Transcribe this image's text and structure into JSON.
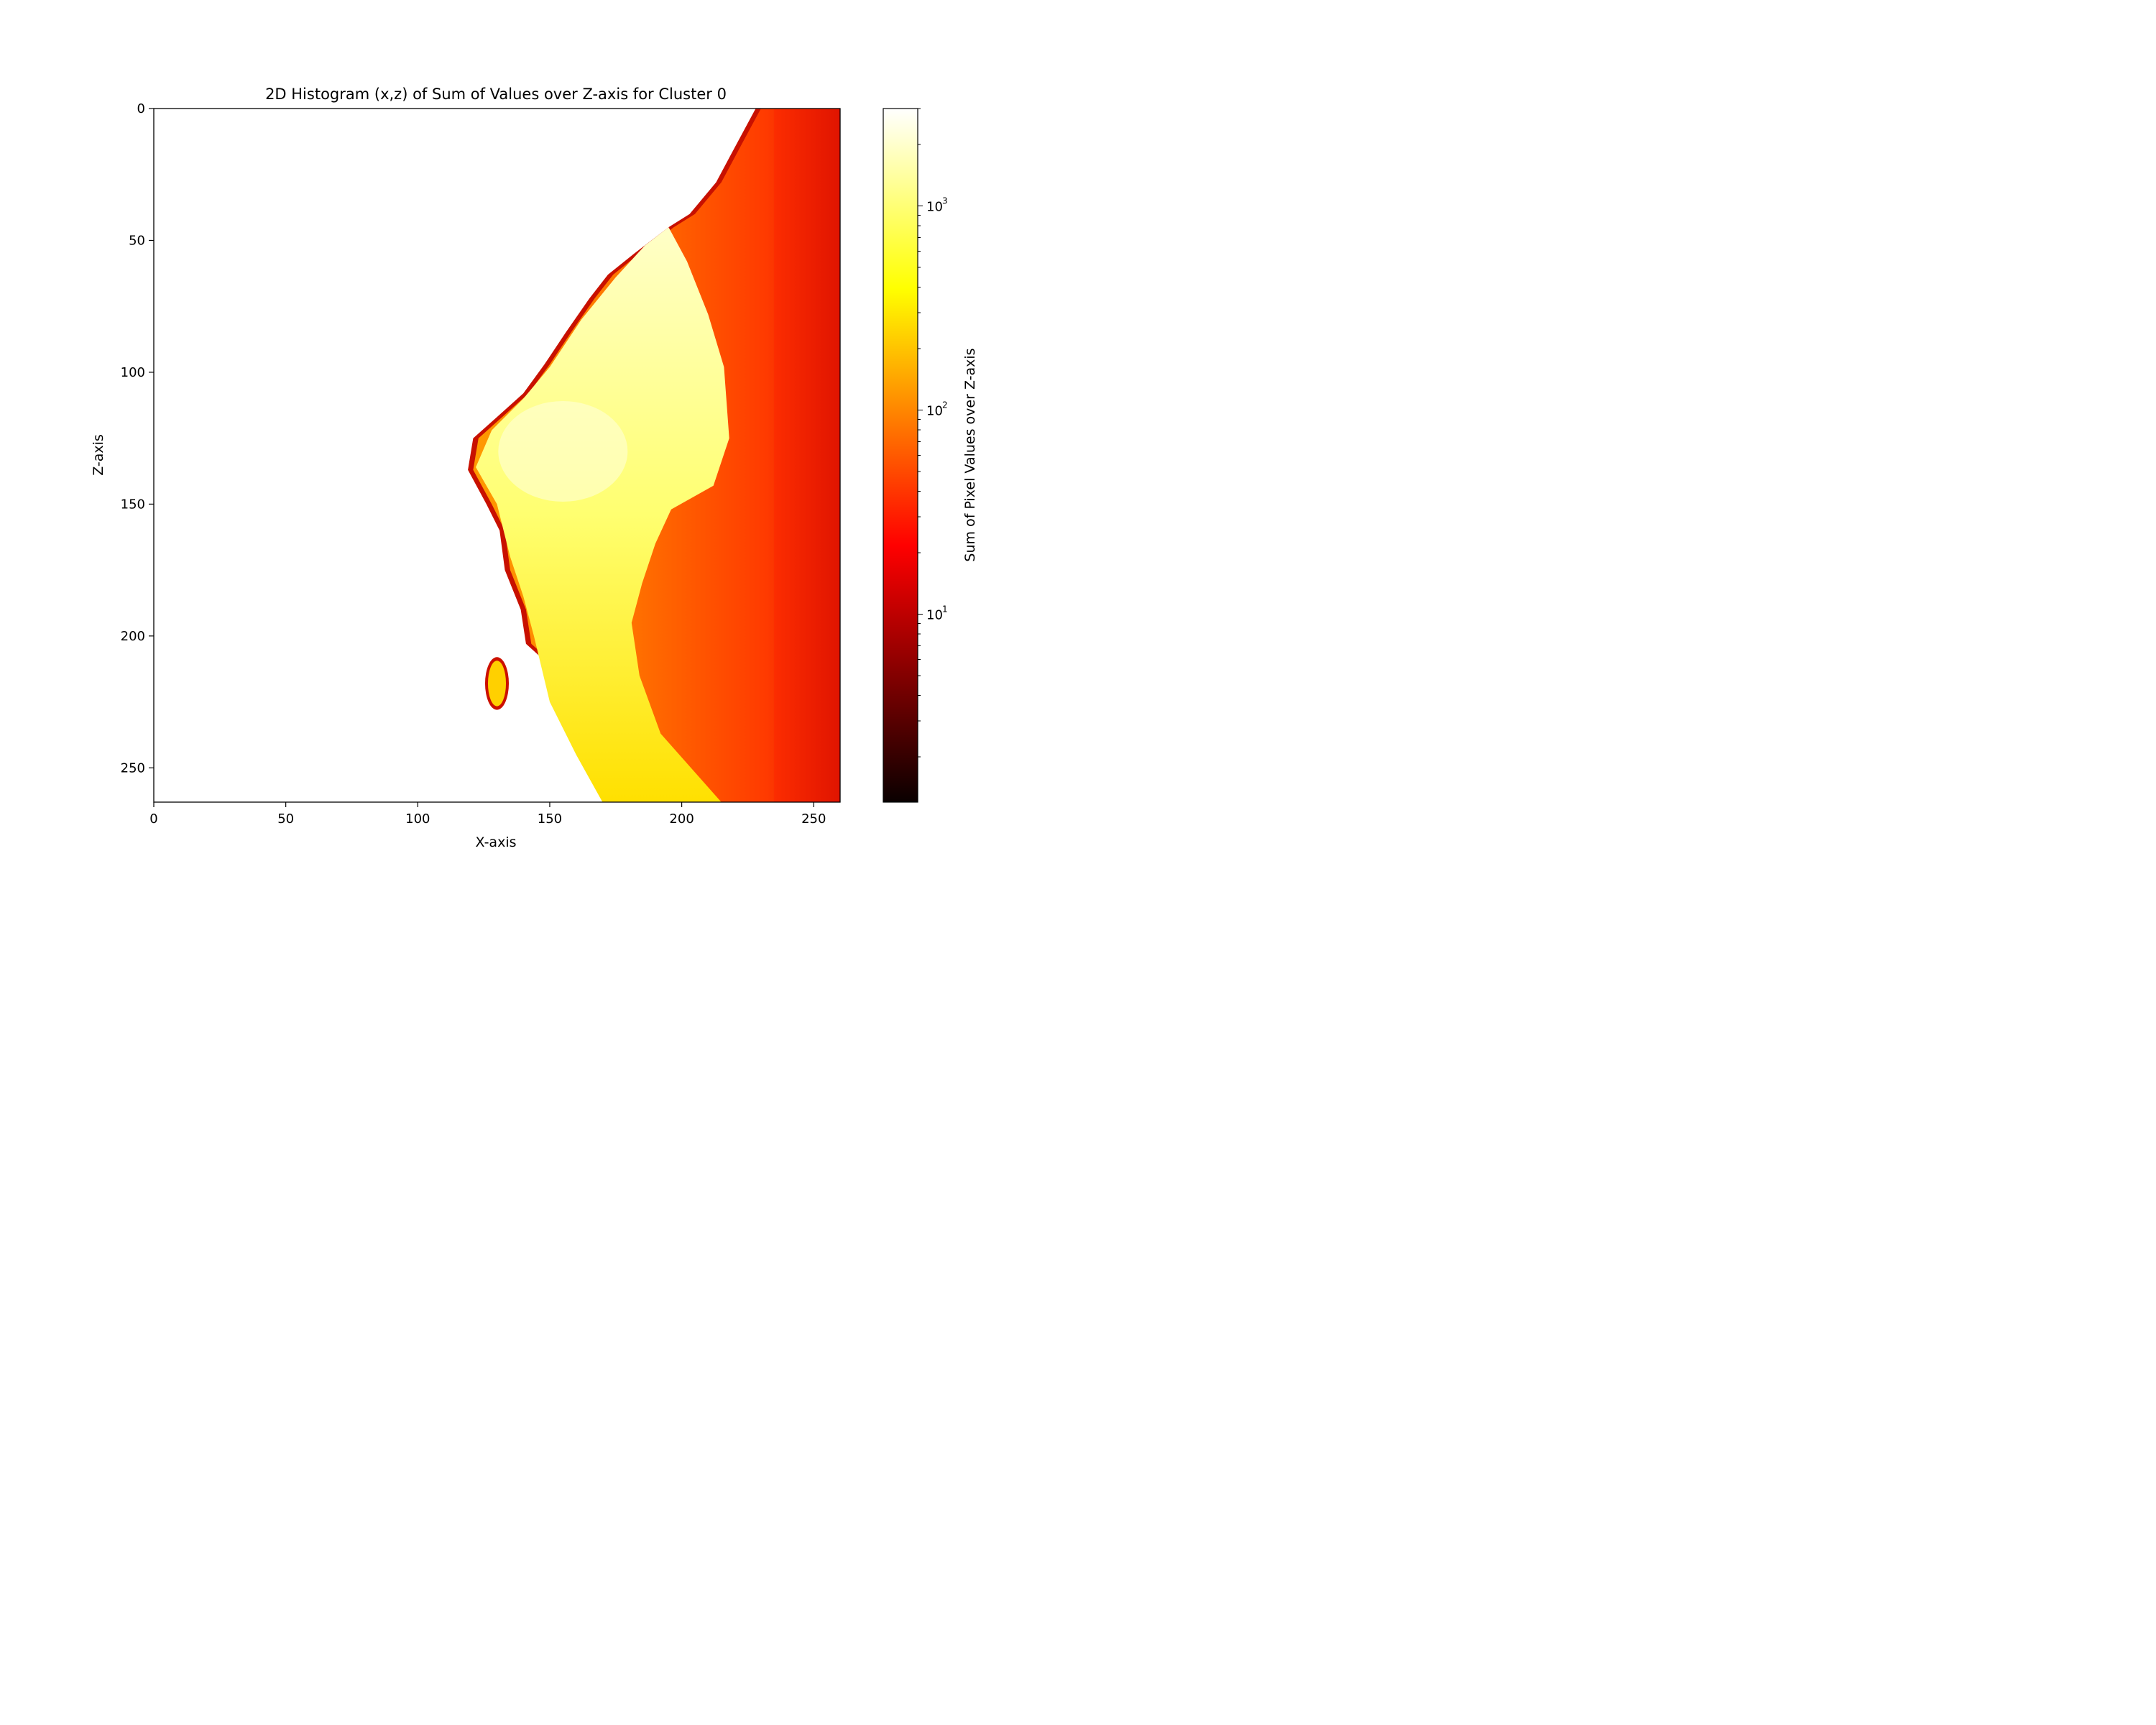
{
  "chart_data": {
    "type": "heatmap",
    "title": "2D Histogram (x,z) of Sum of Values over Z-axis for Cluster 0",
    "xlabel": "X-axis",
    "ylabel": "Z-axis",
    "xlim": [
      0,
      260
    ],
    "ylim": [
      263,
      0
    ],
    "y_inverted": true,
    "x_ticks": [
      0,
      50,
      100,
      150,
      200,
      250
    ],
    "y_ticks": [
      0,
      50,
      100,
      150,
      200,
      250
    ],
    "colormap": "hot",
    "colorbar": {
      "label": "Sum of Pixel Values over Z-axis",
      "scale": "log",
      "range": [
        1.2,
        3000
      ],
      "major_ticks": [
        {
          "value": 10,
          "label": "10",
          "exp": "1"
        },
        {
          "value": 100,
          "label": "10",
          "exp": "2"
        },
        {
          "value": 1000,
          "label": "10",
          "exp": "3"
        }
      ]
    },
    "regions": [
      {
        "name": "main-body",
        "boundary_left": [
          [
            228,
            0
          ],
          [
            221,
            13
          ],
          [
            213,
            28
          ],
          [
            203,
            40
          ],
          [
            195,
            45
          ],
          [
            182,
            55
          ],
          [
            172,
            63
          ],
          [
            165,
            72
          ],
          [
            156,
            85
          ],
          [
            148,
            97
          ],
          [
            140,
            108
          ],
          [
            130,
            117
          ],
          [
            121,
            125
          ],
          [
            119,
            137
          ],
          [
            126,
            150
          ],
          [
            131,
            160
          ],
          [
            133,
            175
          ],
          [
            139,
            190
          ],
          [
            141,
            203
          ],
          [
            151,
            212
          ],
          [
            156,
            230
          ],
          [
            163,
            243
          ],
          [
            171,
            258
          ],
          [
            173,
            263
          ]
        ],
        "core_boundary": [
          [
            195,
            45
          ],
          [
            202,
            58
          ],
          [
            210,
            78
          ],
          [
            216,
            98
          ],
          [
            218,
            125
          ],
          [
            212,
            143
          ],
          [
            196,
            152
          ],
          [
            190,
            165
          ],
          [
            185,
            180
          ],
          [
            181,
            195
          ],
          [
            184,
            215
          ],
          [
            192,
            237
          ],
          [
            215,
            263
          ],
          [
            170,
            263
          ],
          [
            160,
            245
          ],
          [
            150,
            225
          ],
          [
            144,
            200
          ],
          [
            140,
            185
          ],
          [
            135,
            170
          ],
          [
            130,
            150
          ],
          [
            122,
            136
          ],
          [
            128,
            122
          ],
          [
            140,
            110
          ],
          [
            150,
            98
          ],
          [
            162,
            80
          ],
          [
            175,
            64
          ],
          [
            186,
            52
          ]
        ],
        "value_range": [
          2,
          3000
        ]
      },
      {
        "name": "small-blob",
        "center": [
          130,
          218
        ],
        "approx_width": 9,
        "approx_height": 20,
        "value_range": [
          5,
          1000
        ]
      }
    ]
  }
}
